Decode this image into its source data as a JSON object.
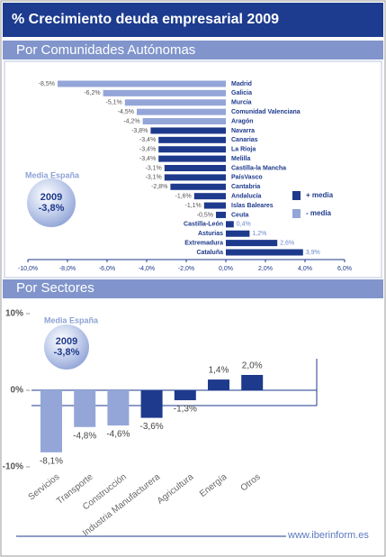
{
  "header": {
    "title": "% Crecimiento deuda empresarial 2009"
  },
  "chart_data": [
    {
      "type": "hbar",
      "subtitle": "Por Comunidades Autónomas",
      "categories": [
        "Madrid",
        "Galicia",
        "Murcia",
        "Comunidad Valenciana",
        "Aragón",
        "Navarra",
        "Canarias",
        "La Rioja",
        "Melilla",
        "Castilla-la Mancha",
        "PaísVasco",
        "Cantabria",
        "Andalucía",
        "Islas Baleares",
        "Ceuta",
        "Castilla-León",
        "Asturias",
        "Extremadura",
        "Cataluña"
      ],
      "values": [
        -8.5,
        -6.2,
        -5.1,
        -4.5,
        -4.2,
        -3.8,
        -3.4,
        -3.4,
        -3.4,
        -3.1,
        -3.1,
        -2.8,
        -1.6,
        -1.1,
        -0.5,
        0.4,
        1.2,
        2.6,
        3.9
      ],
      "value_labels": [
        "-8,5%",
        "-6,2%",
        "-5,1%",
        "-4,5%",
        "-4,2%",
        "-3,8%",
        "-3,4%",
        "-3,4%",
        "-3,4%",
        "-3,1%",
        "-3,1%",
        "-2,8%",
        "-1,6%",
        "-1,1%",
        "-0,5%",
        "0,4%",
        "1,2%",
        "2,6%",
        "3,9%"
      ],
      "colors": [
        "#94a6d8",
        "#94a6d8",
        "#94a6d8",
        "#94a6d8",
        "#94a6d8",
        "#1e3a8c",
        "#1e3a8c",
        "#1e3a8c",
        "#1e3a8c",
        "#1e3a8c",
        "#1e3a8c",
        "#1e3a8c",
        "#1e3a8c",
        "#1e3a8c",
        "#1e3a8c",
        "#1e3a8c",
        "#1e3a8c",
        "#1e3a8c",
        "#1e3a8c"
      ],
      "legend": [
        {
          "label": "+ media",
          "color": "#1e3a8c"
        },
        {
          "label": "- media",
          "color": "#94a6d8"
        }
      ],
      "annotation": {
        "label": "Media España",
        "year": "2009",
        "value_label": "-3,8%"
      },
      "xlim": [
        -10,
        6
      ],
      "xticks": [
        {
          "value": -10,
          "label": "-10,0%"
        },
        {
          "value": -8,
          "label": "-8,0%"
        },
        {
          "value": -6,
          "label": "-6,0%"
        },
        {
          "value": -4,
          "label": "-4,0%"
        },
        {
          "value": -2,
          "label": "-2,0%"
        },
        {
          "value": 0,
          "label": "0,0%"
        },
        {
          "value": 2,
          "label": "2,0%"
        },
        {
          "value": 4,
          "label": "4,0%"
        },
        {
          "value": 6,
          "label": "6,0%"
        }
      ]
    },
    {
      "type": "column",
      "subtitle": "Por Sectores",
      "categories": [
        "Servicios",
        "Transporte",
        "Construcción",
        "Industria Manufacturera",
        "Agricultura",
        "Energía",
        "Otros"
      ],
      "values": [
        -8.1,
        -4.8,
        -4.6,
        -3.6,
        -1.3,
        1.4,
        2.0
      ],
      "value_labels": [
        "-8,1%",
        "-4,8%",
        "-4,6%",
        "-3,6%",
        "-1,3%",
        "1,4%",
        "2,0%"
      ],
      "colors": [
        "#94a6d8",
        "#94a6d8",
        "#94a6d8",
        "#1e3a8c",
        "#1e3a8c",
        "#1e3a8c",
        "#1e3a8c"
      ],
      "annotation": {
        "label": "Media España",
        "year": "2009",
        "value_label": "-3,8%"
      },
      "ylim": [
        -10,
        10
      ],
      "yticks": [
        {
          "value": -10,
          "label": "-10%"
        },
        {
          "value": 0,
          "label": "0%"
        },
        {
          "value": 10,
          "label": "10%"
        }
      ]
    }
  ],
  "footer": "www.iberinform.es"
}
